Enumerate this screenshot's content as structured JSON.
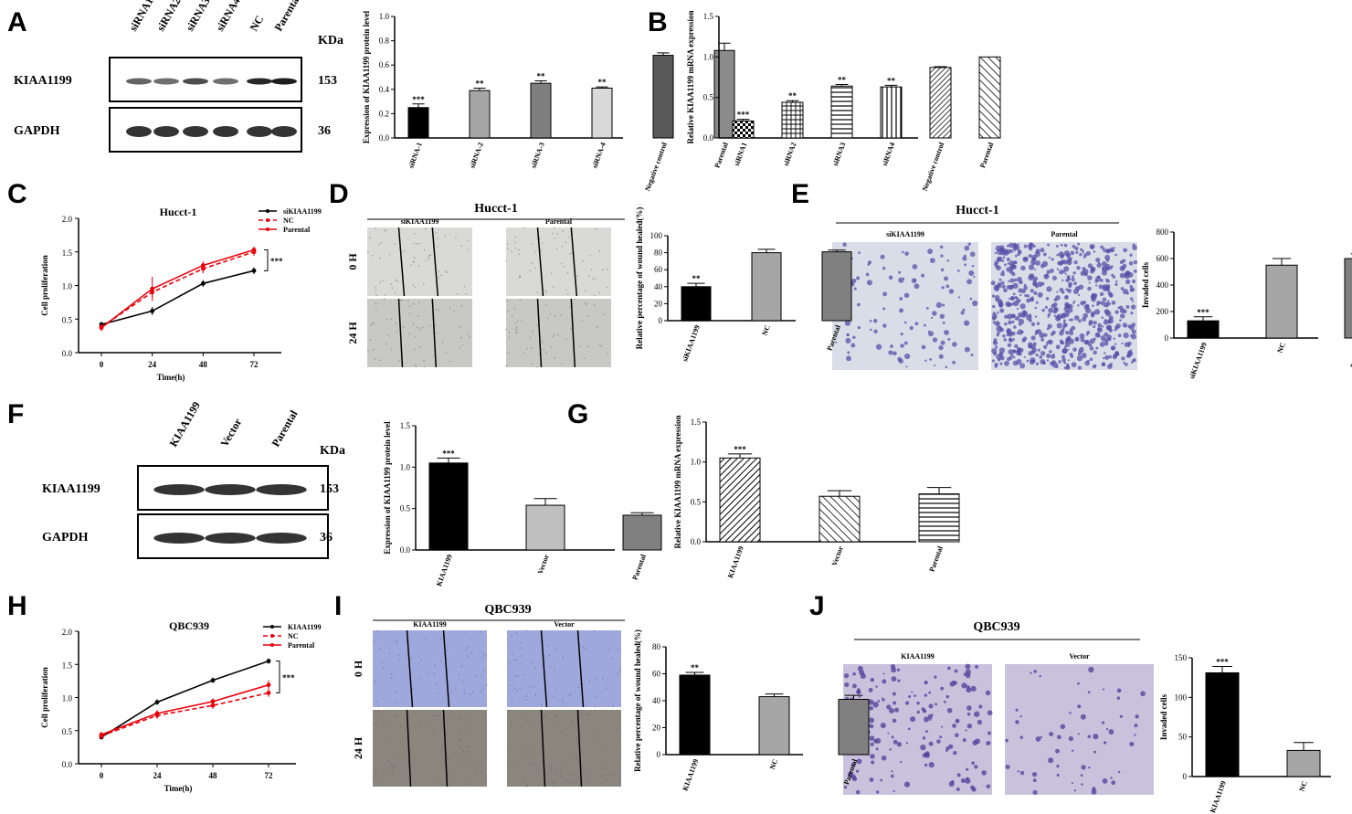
{
  "panel_letters": [
    "A",
    "B",
    "C",
    "D",
    "E",
    "F",
    "G",
    "H",
    "I",
    "J"
  ],
  "blots": [
    {
      "id": "A",
      "lanes": [
        "siRNA1",
        "siRNA2",
        "siRNA3",
        "siRNA4",
        "NC",
        "Parental"
      ],
      "kda_header": "KDa",
      "rows": [
        {
          "label": "KIAA1199",
          "kda": "153"
        },
        {
          "label": "GAPDH",
          "kda": "36"
        }
      ]
    },
    {
      "id": "F",
      "lanes": [
        "KIAA1199",
        "Vector",
        "Parental"
      ],
      "kda_header": "KDa",
      "rows": [
        {
          "label": "KIAA1199",
          "kda": "153"
        },
        {
          "label": "GAPDH",
          "kda": "36"
        }
      ]
    }
  ],
  "images": [
    {
      "id": "D",
      "title": "Hucct-1",
      "cols": [
        "siKIAA1199",
        "Parental"
      ],
      "rows": [
        "0 H",
        "24 H"
      ],
      "tint": "#d9d9d6"
    },
    {
      "id": "E",
      "title": "Hucct-1",
      "cols": [
        "siKIAA1199",
        "Parental"
      ],
      "stain": "#5a4fa8",
      "bg": "#d8dde8"
    },
    {
      "id": "I",
      "title": "QBC939",
      "cols": [
        "KIAA1199",
        "Vector"
      ],
      "rows": [
        "0 H",
        "24 H"
      ],
      "tint": "#9fa8dc"
    },
    {
      "id": "J",
      "title": "QBC939",
      "cols": [
        "KIAA1199",
        "Vector"
      ],
      "stain": "#4e3c9a",
      "bg": "#c9c2dc"
    }
  ],
  "chart_data": [
    {
      "id": "A",
      "type": "bar",
      "categories": [
        "siRNA-1",
        "siRNA-2",
        "siRNA-3",
        "siRNA-4",
        "Negative control",
        "Parental"
      ],
      "values": [
        0.25,
        0.39,
        0.45,
        0.41,
        0.68,
        0.72
      ],
      "errors": [
        0.03,
        0.02,
        0.02,
        0.01,
        0.02,
        0.06
      ],
      "sig": [
        "***",
        "**",
        "**",
        "**",
        "",
        ""
      ],
      "colors": [
        "#000000",
        "#a6a6a6",
        "#7f7f7f",
        "#d9d9d9",
        "#595959",
        "#8c8c8c"
      ],
      "ylabel": "Expression of KIAA1199 protein level",
      "ylim": [
        0,
        1.0
      ],
      "yticks": [
        "0.0",
        "0.2",
        "0.4",
        "0.6",
        "0.8",
        "1.0"
      ]
    },
    {
      "id": "B",
      "type": "bar",
      "categories": [
        "siRNA1",
        "siRNA2",
        "siRNA3",
        "siRNA4",
        "Negative control",
        "Parental"
      ],
      "values": [
        0.21,
        0.44,
        0.64,
        0.63,
        0.87,
        1.0
      ],
      "errors": [
        0.02,
        0.02,
        0.02,
        0.02,
        0.01,
        0.0
      ],
      "sig": [
        "***",
        "**",
        "**",
        "**",
        "",
        ""
      ],
      "ylabel": "Relative KIAA1199 mRNA expression",
      "ylim": [
        0,
        1.5
      ],
      "yticks": [
        "0.0",
        "0.5",
        "1.0",
        "1.5"
      ]
    },
    {
      "id": "C",
      "type": "line",
      "title": "Hucct-1",
      "x": [
        0,
        24,
        48,
        72
      ],
      "xlabel": "Time(h)",
      "ylabel": "Cell proliferation",
      "ylim": [
        0,
        2.0
      ],
      "yticks": [
        "0.0",
        "0.5",
        "1.0",
        "1.5",
        "2.0"
      ],
      "xticks": [
        "0",
        "24",
        "48",
        "72"
      ],
      "sig": "***",
      "series": [
        {
          "name": "siKIAA1199",
          "values": [
            0.42,
            0.62,
            1.03,
            1.22
          ],
          "errors": [
            0.04,
            0.06,
            0.05,
            0.05
          ],
          "color": "#000000",
          "dash": ""
        },
        {
          "name": "NC",
          "values": [
            0.38,
            0.9,
            1.25,
            1.5
          ],
          "errors": [
            0.05,
            0.08,
            0.07,
            0.06
          ],
          "color": "#e8000b",
          "dash": "5,3"
        },
        {
          "name": "Parental",
          "values": [
            0.37,
            0.95,
            1.3,
            1.53
          ],
          "errors": [
            0.05,
            0.18,
            0.06,
            0.05
          ],
          "color": "#e8000b",
          "dash": ""
        }
      ]
    },
    {
      "id": "D",
      "type": "bar",
      "categories": [
        "siKIAA1199",
        "NC",
        "Parental"
      ],
      "values": [
        40,
        80,
        81
      ],
      "errors": [
        4,
        4,
        2
      ],
      "sig": [
        "**",
        "",
        ""
      ],
      "colors": [
        "#000000",
        "#a6a6a6",
        "#808080"
      ],
      "ylabel": "Relative percentage of wound healed(%)",
      "ylim": [
        0,
        100
      ],
      "yticks": [
        "0",
        "20",
        "40",
        "60",
        "80",
        "100"
      ]
    },
    {
      "id": "E",
      "type": "bar",
      "categories": [
        "siKIAA1199",
        "NC",
        "Parental"
      ],
      "values": [
        130,
        550,
        600
      ],
      "errors": [
        30,
        50,
        35
      ],
      "sig": [
        "***",
        "",
        ""
      ],
      "colors": [
        "#000000",
        "#a6a6a6",
        "#808080"
      ],
      "ylabel": "Invaded cells",
      "ylim": [
        0,
        800
      ],
      "yticks": [
        "0",
        "200",
        "400",
        "600",
        "800"
      ]
    },
    {
      "id": "F",
      "type": "bar",
      "categories": [
        "KIAA1199",
        "Vector",
        "Parental"
      ],
      "values": [
        1.05,
        0.54,
        0.42
      ],
      "errors": [
        0.06,
        0.08,
        0.03
      ],
      "sig": [
        "***",
        "",
        ""
      ],
      "colors": [
        "#000000",
        "#bfbfbf",
        "#808080"
      ],
      "ylabel": "Expression of KIAA1199 protein level",
      "ylim": [
        0,
        1.5
      ],
      "yticks": [
        "0.0",
        "0.5",
        "1.0",
        "1.5"
      ]
    },
    {
      "id": "G",
      "type": "bar",
      "categories": [
        "KIAA1199",
        "Vector",
        "Parental"
      ],
      "values": [
        1.05,
        0.57,
        0.6
      ],
      "errors": [
        0.05,
        0.07,
        0.08
      ],
      "sig": [
        "***",
        "",
        ""
      ],
      "ylabel": "Relative KIAA1199 mRNA expression",
      "ylim": [
        0,
        1.5
      ],
      "yticks": [
        "0.0",
        "0.5",
        "1.0",
        "1.5"
      ]
    },
    {
      "id": "H",
      "type": "line",
      "title": "QBC939",
      "x": [
        0,
        24,
        48,
        72
      ],
      "xlabel": "Time(h)",
      "ylabel": "Cell proliferation",
      "ylim": [
        0,
        2.0
      ],
      "yticks": [
        "0.0",
        "0.5",
        "1.0",
        "1.5",
        "2.0"
      ],
      "xticks": [
        "0",
        "24",
        "48",
        "72"
      ],
      "sig": "***",
      "series": [
        {
          "name": "KIAA1199",
          "values": [
            0.4,
            0.93,
            1.26,
            1.55
          ],
          "errors": [
            0.03,
            0.04,
            0.04,
            0.04
          ],
          "color": "#000000",
          "dash": ""
        },
        {
          "name": "NC",
          "values": [
            0.42,
            0.73,
            0.88,
            1.07
          ],
          "errors": [
            0.05,
            0.05,
            0.05,
            0.06
          ],
          "color": "#e8000b",
          "dash": "5,3"
        },
        {
          "name": "Parental",
          "values": [
            0.44,
            0.76,
            0.94,
            1.19
          ],
          "errors": [
            0.04,
            0.05,
            0.05,
            0.07
          ],
          "color": "#e8000b",
          "dash": ""
        }
      ]
    },
    {
      "id": "I",
      "type": "bar",
      "categories": [
        "KIAA1199",
        "NC",
        "Parental"
      ],
      "values": [
        59,
        43,
        41
      ],
      "errors": [
        2,
        2,
        3
      ],
      "sig": [
        "**",
        "",
        ""
      ],
      "colors": [
        "#000000",
        "#a6a6a6",
        "#808080"
      ],
      "ylabel": "Relative percentage of wound healed(%)",
      "ylim": [
        0,
        80
      ],
      "yticks": [
        "0",
        "20",
        "40",
        "60",
        "80"
      ]
    },
    {
      "id": "J",
      "type": "bar",
      "categories": [
        "KIAA1199",
        "NC",
        "Parental"
      ],
      "values": [
        131,
        33,
        28
      ],
      "errors": [
        8,
        10,
        5
      ],
      "sig": [
        "***",
        "",
        ""
      ],
      "colors": [
        "#000000",
        "#a6a6a6",
        "#808080"
      ],
      "ylabel": "Invaded cells",
      "ylim": [
        0,
        150
      ],
      "yticks": [
        "0",
        "50",
        "100",
        "150"
      ]
    }
  ]
}
